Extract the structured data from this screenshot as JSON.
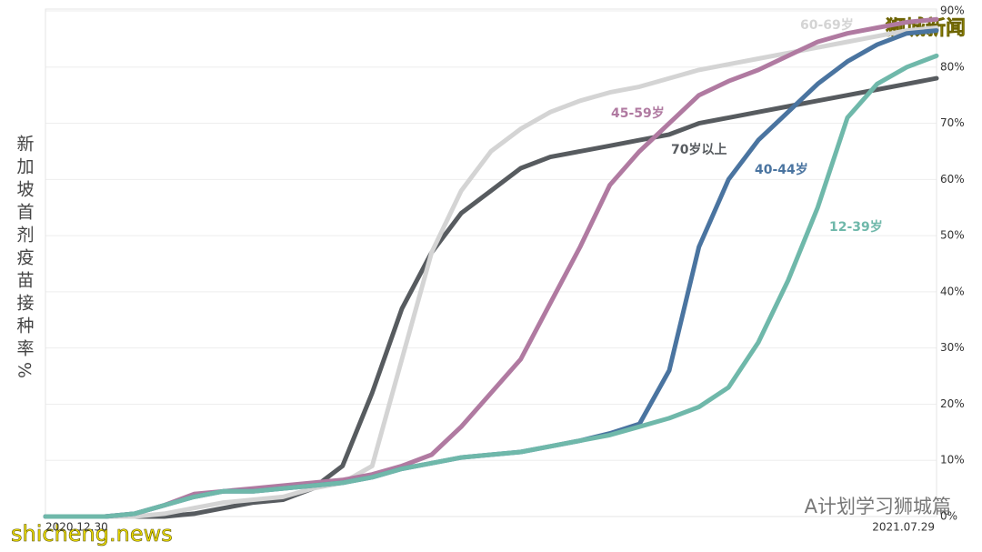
{
  "chart_data": {
    "type": "line",
    "y_label": "新加坡首剂疫苗接种率%",
    "categories": [
      "2020.12.30",
      null,
      null,
      null,
      null,
      null,
      null,
      null,
      null,
      null,
      null,
      null,
      null,
      null,
      null,
      null,
      null,
      null,
      null,
      null,
      null,
      null,
      null,
      null,
      null,
      null,
      null,
      null,
      null,
      null,
      "2021.07.29"
    ],
    "series": [
      {
        "name": "70岁以上",
        "color": "#575b5f",
        "values": [
          0,
          0,
          0,
          0,
          0,
          0.5,
          1.5,
          2.5,
          3,
          5,
          9,
          22,
          37,
          47,
          54,
          58,
          62,
          64,
          65,
          66,
          67,
          68,
          70,
          71,
          72,
          73,
          74,
          75,
          76,
          77,
          78
        ]
      },
      {
        "name": "60-69岁",
        "color": "#d4d4d4",
        "values": [
          0,
          0,
          0,
          0,
          0.5,
          1.5,
          2.5,
          3,
          3.5,
          5,
          6,
          9,
          28,
          47,
          58,
          65,
          69,
          72,
          74,
          75.5,
          76.5,
          78,
          79.5,
          80.5,
          81.5,
          82.5,
          83.5,
          84.5,
          85.5,
          86.5,
          87
        ]
      },
      {
        "name": "45-59岁",
        "color": "#b07aa1",
        "values": [
          0,
          0,
          0,
          0.5,
          2,
          4,
          4.5,
          5,
          5.5,
          6,
          6.5,
          7.5,
          9,
          11,
          16,
          22,
          28,
          38,
          48,
          59,
          65,
          70,
          75,
          77.5,
          79.5,
          82,
          84.5,
          86,
          87,
          88,
          88.5
        ]
      },
      {
        "name": "40-44岁",
        "color": "#4a74a0",
        "values": [
          0,
          0,
          0,
          0.5,
          2,
          3.5,
          4.5,
          4.5,
          5,
          5.5,
          6,
          7,
          8.5,
          9.5,
          10.5,
          11,
          11.5,
          12.5,
          13.5,
          14.8,
          16.5,
          26,
          48,
          60,
          67,
          72,
          77,
          81,
          84,
          86,
          86.5
        ]
      },
      {
        "name": "12-39岁",
        "color": "#6fb8aa",
        "values": [
          0,
          0,
          0,
          0.5,
          2,
          3.5,
          4.5,
          4.5,
          5,
          5.5,
          6,
          7,
          8.5,
          9.5,
          10.5,
          11,
          11.5,
          12.5,
          13.5,
          14.5,
          16,
          17.5,
          19.5,
          23,
          31,
          42,
          55,
          71,
          77,
          80,
          82
        ]
      }
    ],
    "ylim": [
      0,
      90
    ],
    "yticks": [
      {
        "value": 0,
        "label": "0%"
      },
      {
        "value": 10,
        "label": "10%"
      },
      {
        "value": 20,
        "label": "20%"
      },
      {
        "value": 30,
        "label": "30%"
      },
      {
        "value": 40,
        "label": "40%"
      },
      {
        "value": 50,
        "label": "50%"
      },
      {
        "value": 60,
        "label": "60%"
      },
      {
        "value": 70,
        "label": "70%"
      },
      {
        "value": 80,
        "label": "80%"
      },
      {
        "value": 90,
        "label": "90%"
      }
    ],
    "grid": true
  },
  "watermarks": [
    "狮城新闻",
    "shicheng.news",
    "A计划学习狮城篇"
  ]
}
